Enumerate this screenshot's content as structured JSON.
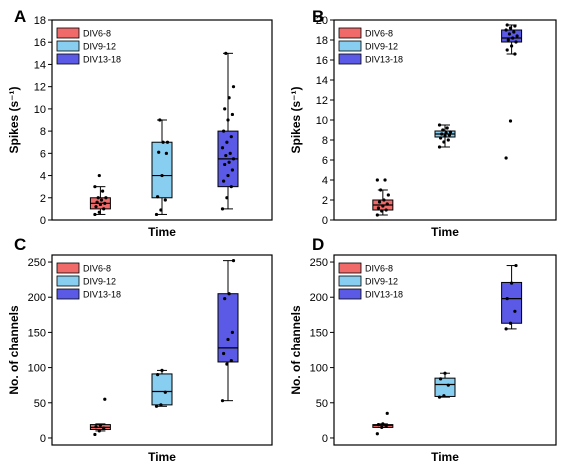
{
  "colors": {
    "c1": "#F06A6A",
    "c2": "#87CEF0",
    "c3": "#5A5AE6"
  },
  "chart_data": [
    {
      "type": "box",
      "panel": "A",
      "xlabel": "Time",
      "ylabel": "Spikes (s⁻¹)",
      "ylim": [
        0,
        18
      ],
      "yticks": [
        0,
        2,
        4,
        6,
        8,
        10,
        12,
        14,
        16,
        18
      ],
      "legend": [
        "DIV6-8",
        "DIV9-12",
        "DIV13-18"
      ],
      "legend_position": "top-left",
      "series": [
        {
          "name": "DIV6-8",
          "box": {
            "whisker_low": 0.5,
            "q1": 1.0,
            "median": 1.5,
            "q3": 2.0,
            "whisker_high": 3.0
          },
          "points": [
            0.5,
            0.7,
            1.0,
            1.2,
            1.4,
            1.5,
            1.6,
            1.8,
            2.0,
            2.0,
            2.6,
            3.0,
            4.0
          ]
        },
        {
          "name": "DIV9-12",
          "box": {
            "whisker_low": 0.5,
            "q1": 2.0,
            "median": 4.0,
            "q3": 7.0,
            "whisker_high": 9.0
          },
          "points": [
            0.5,
            0.9,
            1.8,
            2.1,
            4.0,
            6.0,
            6.1,
            7.0,
            7.0,
            9.0
          ]
        },
        {
          "name": "DIV13-18",
          "box": {
            "whisker_low": 1.0,
            "q1": 3.0,
            "median": 5.5,
            "q3": 8.0,
            "whisker_high": 15.0
          },
          "points": [
            1.0,
            2.0,
            3.0,
            3.5,
            4.0,
            4.5,
            5.0,
            5.2,
            5.5,
            5.8,
            6.0,
            6.5,
            7.0,
            7.5,
            8.0,
            9.0,
            9.5,
            10.0,
            11.0,
            12.0,
            15.0
          ]
        }
      ]
    },
    {
      "type": "box",
      "panel": "B",
      "xlabel": "Time",
      "ylabel": "Spikes (s⁻¹)",
      "ylim": [
        0,
        20
      ],
      "yticks": [
        0,
        2,
        4,
        6,
        8,
        10,
        12,
        14,
        16,
        18,
        20
      ],
      "legend": [
        "DIV6-8",
        "DIV9-12",
        "DIV13-18"
      ],
      "legend_position": "top-left",
      "series": [
        {
          "name": "DIV6-8",
          "box": {
            "whisker_low": 0.5,
            "q1": 1.0,
            "median": 1.5,
            "q3": 2.0,
            "whisker_high": 3.0
          },
          "points": [
            0.5,
            0.9,
            1.0,
            1.2,
            1.4,
            1.6,
            1.8,
            2.0,
            2.5,
            3.0,
            4.0,
            4.0
          ]
        },
        {
          "name": "DIV9-12",
          "box": {
            "whisker_low": 7.3,
            "q1": 8.3,
            "median": 8.6,
            "q3": 8.9,
            "whisker_high": 9.5
          },
          "points": [
            7.3,
            7.8,
            8.0,
            8.2,
            8.4,
            8.5,
            8.6,
            8.7,
            8.8,
            9.0,
            9.2,
            9.5
          ]
        },
        {
          "name": "DIV13-18",
          "box": {
            "whisker_low": 16.6,
            "q1": 17.8,
            "median": 18.2,
            "q3": 19.0,
            "whisker_high": 19.5
          },
          "points": [
            6.2,
            9.9,
            16.6,
            17.0,
            17.4,
            17.8,
            18.0,
            18.2,
            18.4,
            18.6,
            18.8,
            19.0,
            19.2,
            19.4,
            19.5
          ]
        }
      ]
    },
    {
      "type": "box",
      "panel": "C",
      "xlabel": "Time",
      "ylabel": "No. of channels",
      "ylim": [
        -10,
        260
      ],
      "yticks": [
        0,
        50,
        100,
        150,
        200,
        250
      ],
      "legend": [
        "DIV6-8",
        "DIV9-12",
        "DIV13-18"
      ],
      "legend_position": "top-left",
      "series": [
        {
          "name": "DIV6-8",
          "box": {
            "whisker_low": 10,
            "q1": 12,
            "median": 15,
            "q3": 19,
            "whisker_high": 20
          },
          "points": [
            5,
            10,
            14,
            16,
            18,
            55
          ]
        },
        {
          "name": "DIV9-12",
          "box": {
            "whisker_low": 45,
            "q1": 47,
            "median": 66,
            "q3": 91,
            "whisker_high": 96
          },
          "points": [
            45,
            47,
            65,
            90,
            96
          ]
        },
        {
          "name": "DIV13-18",
          "box": {
            "whisker_low": 53,
            "q1": 108,
            "median": 128,
            "q3": 205,
            "whisker_high": 252
          },
          "points": [
            53,
            105,
            110,
            120,
            140,
            150,
            198,
            205,
            252
          ]
        }
      ]
    },
    {
      "type": "box",
      "panel": "D",
      "xlabel": "Time",
      "ylabel": "No. of channels",
      "ylim": [
        -10,
        260
      ],
      "yticks": [
        0,
        50,
        100,
        150,
        200,
        250
      ],
      "legend": [
        "DIV6-8",
        "DIV9-12",
        "DIV13-18"
      ],
      "legend_position": "top-left",
      "series": [
        {
          "name": "DIV6-8",
          "box": {
            "whisker_low": 15,
            "q1": 15,
            "median": 18,
            "q3": 19,
            "whisker_high": 20
          },
          "points": [
            6,
            15,
            17,
            19,
            20,
            35
          ]
        },
        {
          "name": "DIV9-12",
          "box": {
            "whisker_low": 58,
            "q1": 59,
            "median": 76,
            "q3": 85,
            "whisker_high": 92
          },
          "points": [
            58,
            60,
            75,
            84,
            92
          ]
        },
        {
          "name": "DIV13-18",
          "box": {
            "whisker_low": 155,
            "q1": 163,
            "median": 198,
            "q3": 221,
            "whisker_high": 245
          },
          "points": [
            155,
            163,
            180,
            198,
            220,
            245
          ]
        }
      ]
    }
  ]
}
